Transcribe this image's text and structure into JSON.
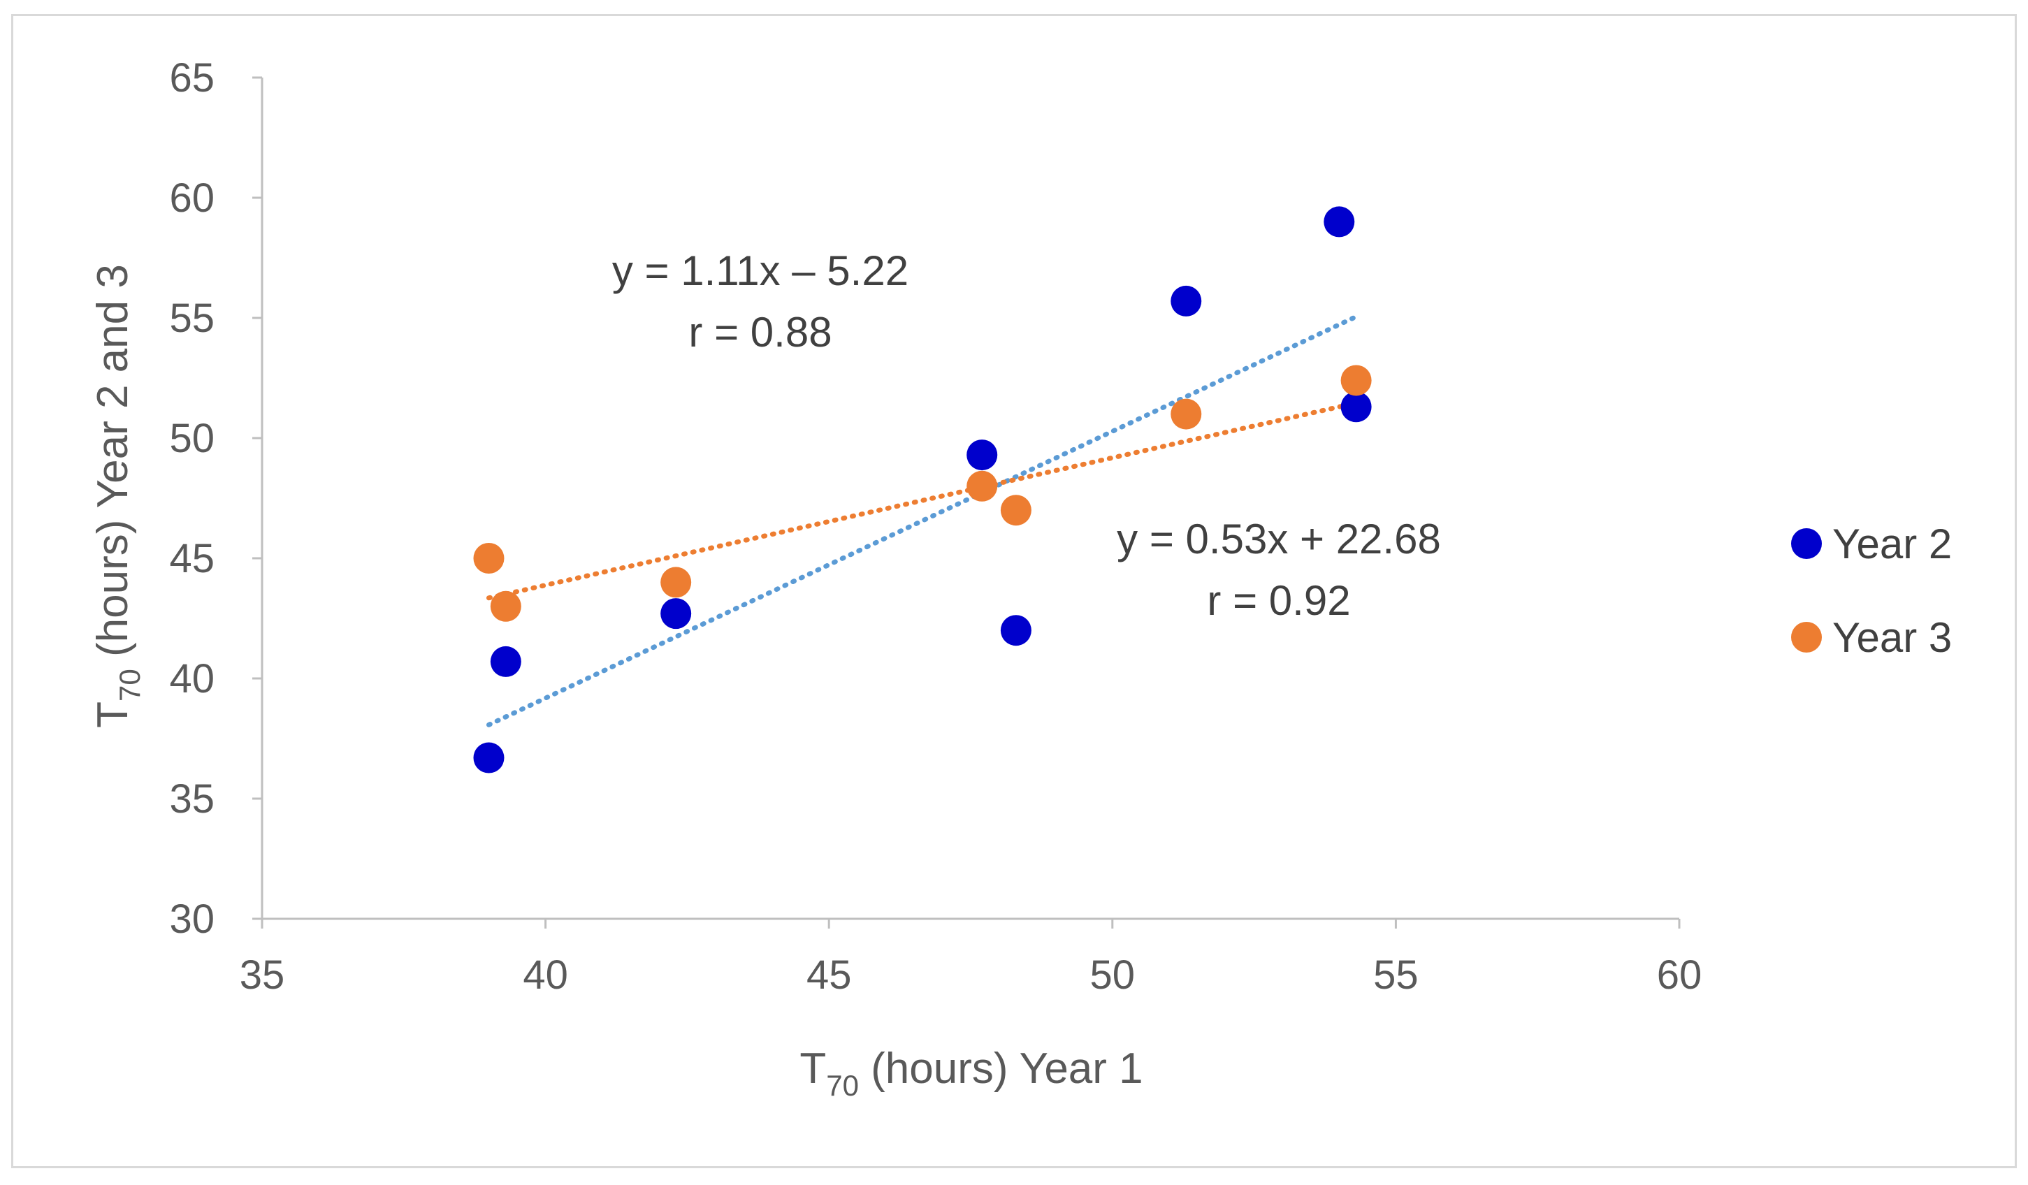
{
  "chart_data": {
    "type": "scatter",
    "title": "",
    "xlabel": {
      "main": "T",
      "sub": "70",
      "rest": " (hours) Year 1"
    },
    "ylabel": {
      "main": "T",
      "sub": "70",
      "rest": " (hours) Year 2 and 3"
    },
    "xlim": [
      35,
      60
    ],
    "ylim": [
      30,
      65
    ],
    "xticks": [
      35,
      40,
      45,
      50,
      55,
      60
    ],
    "yticks": [
      30,
      35,
      40,
      45,
      50,
      55,
      60,
      65
    ],
    "grid": false,
    "legend_position": "right",
    "series": [
      {
        "name": "Year 2",
        "color": "#0000cc",
        "trend_color": "#5b9bd5",
        "x": [
          39.0,
          39.3,
          42.3,
          47.7,
          48.3,
          51.3,
          54.0,
          54.3
        ],
        "y": [
          36.7,
          40.7,
          42.7,
          49.3,
          42.0,
          55.7,
          59.0,
          51.3
        ],
        "trendline": {
          "slope": 1.11,
          "intercept": -5.22,
          "x_range": [
            39.0,
            54.3
          ]
        },
        "equation": "y = 1.11x – 5.22",
        "r_label": "r = 0.88"
      },
      {
        "name": "Year 3",
        "color": "#ed7d31",
        "trend_color": "#ed7d31",
        "x": [
          39.0,
          39.3,
          42.3,
          47.7,
          48.3,
          51.3,
          54.3
        ],
        "y": [
          45.0,
          43.0,
          44.0,
          48.0,
          47.0,
          51.0,
          52.4
        ],
        "trendline": {
          "slope": 0.53,
          "intercept": 22.68,
          "x_range": [
            39.0,
            54.3
          ]
        },
        "equation": "y = 0.53x + 22.68",
        "r_label": "r = 0.92"
      }
    ]
  }
}
